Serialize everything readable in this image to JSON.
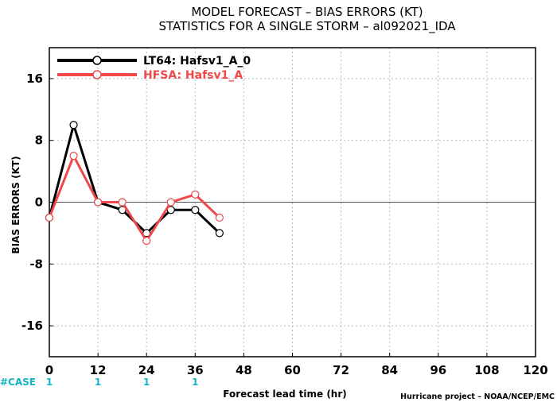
{
  "chart_data": {
    "type": "line",
    "title": "MODEL FORECAST – BIAS ERRORS (KT)",
    "subtitle": "STATISTICS FOR A SINGLE STORM – al092021_IDA",
    "xlabel": "Forecast lead time (hr)",
    "ylabel": "BIAS ERRORS (KT)",
    "xlim": [
      0,
      120
    ],
    "ylim": [
      -20,
      20
    ],
    "xticks": [
      0,
      12,
      24,
      36,
      48,
      60,
      72,
      84,
      96,
      108,
      120
    ],
    "yticks": [
      -16,
      -8,
      0,
      8,
      16
    ],
    "grid": true,
    "legend_position": "top-left",
    "series": [
      {
        "name": "LT64: Hafsv1_A_0",
        "color": "#000000",
        "x": [
          0,
          6,
          12,
          18,
          24,
          30,
          36,
          42
        ],
        "y": [
          -2,
          10,
          0,
          -1,
          -4,
          -1,
          -1,
          -4
        ]
      },
      {
        "name": "HFSA: Hafsv1_A",
        "color": "#f04848",
        "x": [
          0,
          6,
          12,
          18,
          24,
          30,
          36,
          42
        ],
        "y": [
          -2,
          6,
          0,
          0,
          -5,
          0,
          1,
          -2
        ]
      }
    ],
    "case_label": "#CASE",
    "cases": [
      {
        "x": 0,
        "count": "1"
      },
      {
        "x": 12,
        "count": "1"
      },
      {
        "x": 24,
        "count": "1"
      },
      {
        "x": 36,
        "count": "1"
      }
    ],
    "credit": "Hurricane project – NOAA/NCEP/EMC"
  }
}
